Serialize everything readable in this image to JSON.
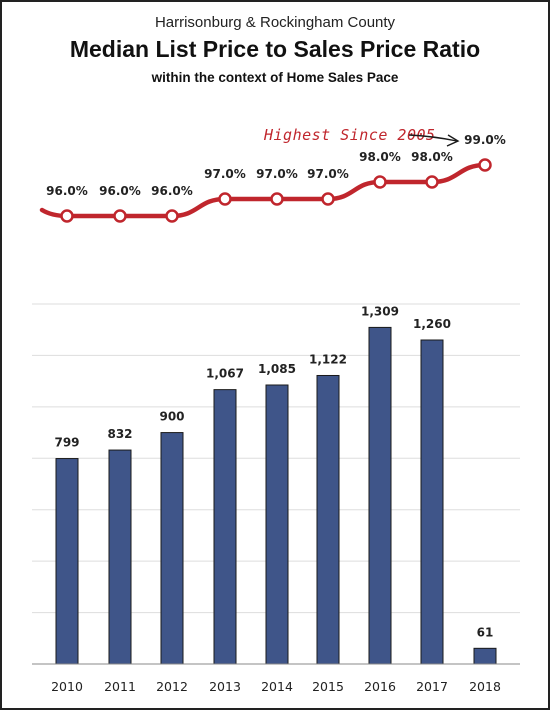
{
  "header": {
    "subtitle_top": "Harrisonburg & Rockingham County",
    "title": "Median List Price to Sales Price Ratio",
    "subtitle_bottom": "within the context of Home Sales Pace"
  },
  "annotation": "Highest Since 2005",
  "colors": {
    "bar": "#3f5589",
    "bar_border": "#1a1a1a",
    "line": "#c0262d",
    "marker_fill": "#ffffff",
    "grid": "#dddddd"
  },
  "chart_data": [
    {
      "type": "line",
      "title": "Median List Price to Sales Price Ratio",
      "x": [
        "2010",
        "2011",
        "2012",
        "2013",
        "2014",
        "2015",
        "2016",
        "2017",
        "2018"
      ],
      "values": [
        96.0,
        96.0,
        96.0,
        97.0,
        97.0,
        97.0,
        98.0,
        98.0,
        99.0
      ],
      "labels": [
        "96.0%",
        "96.0%",
        "96.0%",
        "97.0%",
        "97.0%",
        "97.0%",
        "98.0%",
        "98.0%",
        "99.0%"
      ],
      "unit": "%",
      "annotation": "Highest Since 2005"
    },
    {
      "type": "bar",
      "title": "Home Sales Pace",
      "categories": [
        "2010",
        "2011",
        "2012",
        "2013",
        "2014",
        "2015",
        "2016",
        "2017",
        "2018"
      ],
      "values": [
        799,
        832,
        900,
        1067,
        1085,
        1122,
        1309,
        1260,
        61
      ],
      "labels": [
        "799",
        "832",
        "900",
        "1,067",
        "1,085",
        "1,122",
        "1,309",
        "1,260",
        "61"
      ],
      "ylim": [
        0,
        1400
      ],
      "grid": true
    }
  ]
}
